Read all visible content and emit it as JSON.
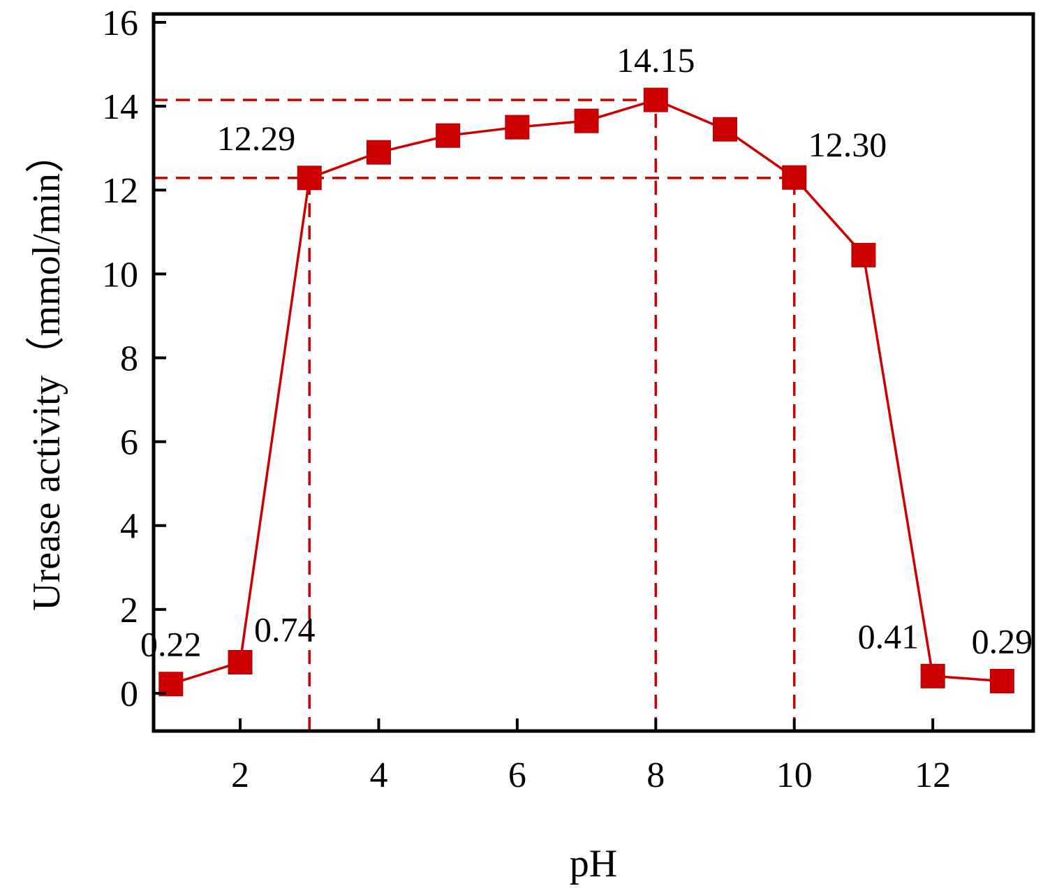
{
  "chart_data": {
    "type": "line",
    "title": "",
    "xlabel": "pH",
    "ylabel": "Urease activity（mmol/min）",
    "xlim": [
      0.75,
      13.45
    ],
    "ylim": [
      -0.9,
      16.2
    ],
    "xticks": [
      2,
      4,
      6,
      8,
      10,
      12
    ],
    "yticks": [
      0,
      2,
      4,
      6,
      8,
      10,
      12,
      14,
      16
    ],
    "grid": false,
    "series": [
      {
        "name": "Urease activity",
        "color": "#cc0000",
        "marker": "square",
        "x": [
          1,
          2,
          3,
          4,
          5,
          6,
          7,
          8,
          9,
          10,
          11,
          12,
          13
        ],
        "y": [
          0.22,
          0.74,
          12.29,
          12.9,
          13.3,
          13.5,
          13.65,
          14.15,
          13.45,
          12.3,
          10.45,
          0.41,
          0.29
        ]
      }
    ],
    "reference_lines": [
      {
        "axis": "y",
        "value": 14.15,
        "x_to": 8
      },
      {
        "axis": "y",
        "value": 12.29,
        "x_to": 10
      },
      {
        "axis": "x",
        "value": 3,
        "y_to": 12.29
      },
      {
        "axis": "x",
        "value": 8,
        "y_to": 14.15
      },
      {
        "axis": "x",
        "value": 10,
        "y_to": 12.3
      }
    ],
    "annotations": [
      {
        "text": "0.22",
        "x": 1,
        "y": 0.22,
        "anchor": "above"
      },
      {
        "text": "0.74",
        "x": 2,
        "y": 0.74,
        "anchor": "above-right"
      },
      {
        "text": "12.29",
        "x": 3,
        "y": 12.29,
        "anchor": "above-left"
      },
      {
        "text": "14.15",
        "x": 8,
        "y": 14.15,
        "anchor": "above"
      },
      {
        "text": "12.30",
        "x": 10,
        "y": 12.3,
        "anchor": "above-right"
      },
      {
        "text": "0.41",
        "x": 12,
        "y": 0.41,
        "anchor": "above-left"
      },
      {
        "text": "0.29",
        "x": 13,
        "y": 0.29,
        "anchor": "above"
      }
    ]
  }
}
